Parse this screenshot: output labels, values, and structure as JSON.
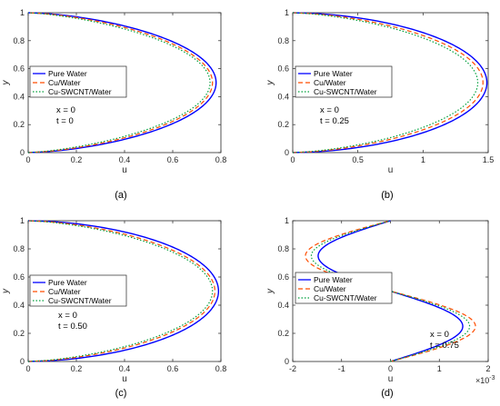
{
  "colors": {
    "pure_water": "#0000ff",
    "cu_water": "#ff4d00",
    "cu_swcnt_water": "#00a03c",
    "axes": "#262626"
  },
  "legend_entries": [
    "Pure Water",
    "Cu/Water",
    "Cu-SWCNT/Water"
  ],
  "chart_data": [
    {
      "type": "line",
      "panel_label": "(a)",
      "xlabel": "u",
      "ylabel": "y",
      "xlim": [
        0,
        0.8
      ],
      "ylim": [
        0,
        1
      ],
      "xticks": [
        0,
        0.2,
        0.4,
        0.6,
        0.8
      ],
      "xtick_labels": [
        "0",
        "0.2",
        "0.4",
        "0.6",
        "0.8"
      ],
      "yticks": [
        0,
        0.2,
        0.4,
        0.6,
        0.8,
        1
      ],
      "ytick_labels": [
        "0",
        "0.2",
        "0.4",
        "0.6",
        "0.8",
        "1"
      ],
      "legend_position": "center-left",
      "annotations": [
        "x = 0",
        "t = 0"
      ],
      "series": [
        {
          "name": "Pure Water",
          "style": "solid",
          "peak_u": 0.78,
          "flatness": 6
        },
        {
          "name": "Cu/Water",
          "style": "dashed",
          "peak_u": 0.765,
          "flatness": 5
        },
        {
          "name": "Cu-SWCNT/Water",
          "style": "dotted",
          "peak_u": 0.755,
          "flatness": 4
        }
      ]
    },
    {
      "type": "line",
      "panel_label": "(b)",
      "xlabel": "u",
      "ylabel": "y",
      "xlim": [
        0,
        1.5
      ],
      "ylim": [
        0,
        1
      ],
      "xticks": [
        0,
        0.5,
        1,
        1.5
      ],
      "xtick_labels": [
        "0",
        "0.5",
        "1",
        "1.5"
      ],
      "yticks": [
        0,
        0.2,
        0.4,
        0.6,
        0.8,
        1
      ],
      "ytick_labels": [
        "0",
        "0.2",
        "0.4",
        "0.6",
        "0.8",
        "1"
      ],
      "legend_position": "center-left",
      "annotations": [
        "x = 0",
        "t = 0.25"
      ],
      "series": [
        {
          "name": "Pure Water",
          "style": "solid",
          "peak_u": 1.49,
          "flatness": 8
        },
        {
          "name": "Cu/Water",
          "style": "dashed",
          "peak_u": 1.46,
          "flatness": 6
        },
        {
          "name": "Cu-SWCNT/Water",
          "style": "dotted",
          "peak_u": 1.42,
          "flatness": 5
        }
      ]
    },
    {
      "type": "line",
      "panel_label": "(c)",
      "xlabel": "u",
      "ylabel": "y",
      "xlim": [
        0,
        0.8
      ],
      "ylim": [
        0,
        1
      ],
      "xticks": [
        0,
        0.2,
        0.4,
        0.6,
        0.8
      ],
      "xtick_labels": [
        "0",
        "0.2",
        "0.4",
        "0.6",
        "0.8"
      ],
      "yticks": [
        0,
        0.2,
        0.4,
        0.6,
        0.8,
        1
      ],
      "ytick_labels": [
        "0",
        "0.2",
        "0.4",
        "0.6",
        "0.8",
        "1"
      ],
      "legend_position": "center-left",
      "annotations": [
        "x = 0",
        "t = 0.50"
      ],
      "series": [
        {
          "name": "Pure Water",
          "style": "solid",
          "peak_u": 0.79,
          "flatness": 8
        },
        {
          "name": "Cu/Water",
          "style": "dashed",
          "peak_u": 0.775,
          "flatness": 6
        },
        {
          "name": "Cu-SWCNT/Water",
          "style": "dotted",
          "peak_u": 0.765,
          "flatness": 5
        }
      ]
    },
    {
      "type": "line",
      "panel_label": "(d)",
      "xlabel": "u",
      "ylabel": "y",
      "xlim": [
        -0.002,
        0.002
      ],
      "ylim": [
        0,
        1
      ],
      "xticks": [
        -0.002,
        -0.001,
        0,
        0.001,
        0.002
      ],
      "xtick_labels": [
        "-2",
        "-1",
        "0",
        "1",
        "2"
      ],
      "x_multiplier": "×10",
      "x_multiplier_exponent": "-3",
      "yticks": [
        0,
        0.2,
        0.4,
        0.6,
        0.8,
        1
      ],
      "ytick_labels": [
        "0",
        "0.2",
        "0.4",
        "0.6",
        "0.8",
        "1"
      ],
      "legend_position": "center",
      "annotations": [
        "x = 0",
        "t = 0.75"
      ],
      "series": [
        {
          "name": "Pure Water",
          "style": "solid",
          "amplitude_u": 0.00148
        },
        {
          "name": "Cu/Water",
          "style": "dashed",
          "amplitude_u": 0.00174
        },
        {
          "name": "Cu-SWCNT/Water",
          "style": "dotted",
          "amplitude_u": 0.00162
        }
      ]
    }
  ]
}
